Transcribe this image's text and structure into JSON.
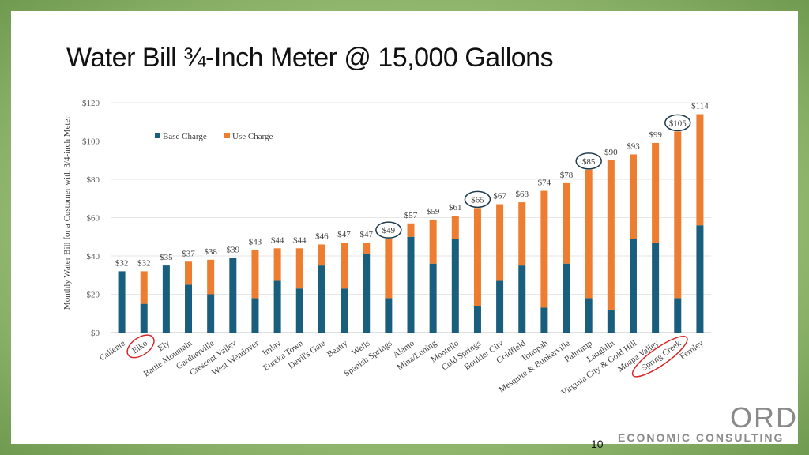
{
  "slide": {
    "title": "Water Bill ¾-Inch Meter @ 15,000 Gallons",
    "page_number": "10",
    "logo_text": "ORD",
    "logo_subtext": "ECONOMIC CONSULTING"
  },
  "colors": {
    "base": "#1a5e7e",
    "use": "#ed7d31",
    "highlight_circle": "#1f3a4d",
    "red_circle": "#d9262a"
  },
  "chart_data": {
    "type": "bar",
    "stacked": true,
    "title": "",
    "xlabel": "",
    "ylabel": "Monthly Water Bill for a Customer with 3/4-inch Meter",
    "ylim": [
      0,
      120
    ],
    "yticks": [
      "$0",
      "$20",
      "$40",
      "$60",
      "$80",
      "$100",
      "$120"
    ],
    "legend_position": "top-left",
    "grid": true,
    "categories": [
      "Caliente",
      "Elko",
      "Ely",
      "Battle Mountain",
      "Gardnerville",
      "Crescent Valley",
      "West Wendover",
      "Imlay",
      "Eureka Town",
      "Devil's Gate",
      "Beatty",
      "Wells",
      "Spanish Springs",
      "Alamo",
      "Mina/Luning",
      "Montello",
      "Cold Springs",
      "Boulder City",
      "Goldfield",
      "Tonopah",
      "Mesquite & Bunkerville",
      "Pahrump",
      "Laughlin",
      "Virginia City & Gold Hill",
      "Moapa Valley",
      "Spring Creek",
      "Fernley"
    ],
    "series": [
      {
        "name": "Base Charge",
        "values": [
          32,
          15,
          35,
          25,
          20,
          39,
          18,
          27,
          23,
          35,
          23,
          41,
          18,
          50,
          36,
          49,
          14,
          27,
          35,
          13,
          36,
          18,
          12,
          49,
          47,
          18,
          56
        ]
      },
      {
        "name": "Use Charge",
        "values": [
          0,
          17,
          0,
          12,
          18,
          0,
          25,
          17,
          21,
          11,
          24,
          6,
          31,
          7,
          23,
          12,
          51,
          40,
          33,
          61,
          42,
          67,
          78,
          44,
          52,
          87,
          58
        ]
      }
    ],
    "data_labels": [
      "$32",
      "$32",
      "$35",
      "$37",
      "$38",
      "$39",
      "$43",
      "$44",
      "$44",
      "$46",
      "$47",
      "$47",
      "$49",
      "$57",
      "$59",
      "$61",
      "$65",
      "$67",
      "$68",
      "$74",
      "$78",
      "$85",
      "$90",
      "$93",
      "$99",
      "$105",
      "$114"
    ],
    "highlighted_labels": [
      "$49",
      "$65",
      "$85",
      "$105"
    ],
    "highlighted_categories": [
      "Elko",
      "Spring Creek"
    ]
  }
}
